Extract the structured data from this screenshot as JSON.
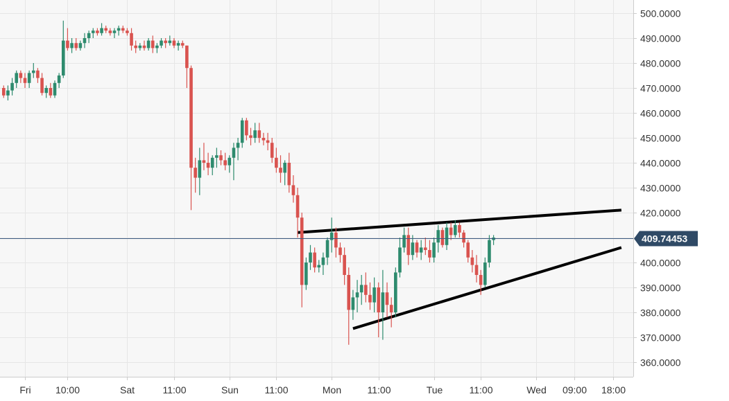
{
  "chart_data": {
    "type": "candlestick",
    "title": "",
    "xlabel": "",
    "ylabel": "",
    "ylim": [
      355,
      505
    ],
    "y_ticks": [
      "500.0000",
      "490.0000",
      "480.0000",
      "470.0000",
      "460.0000",
      "450.0000",
      "440.0000",
      "430.0000",
      "420.0000",
      "410.0000",
      "400.0000",
      "390.0000",
      "380.0000",
      "370.0000",
      "360.0000"
    ],
    "y_tick_values": [
      500,
      490,
      480,
      470,
      460,
      450,
      440,
      430,
      420,
      410,
      400,
      390,
      380,
      370,
      360
    ],
    "x_ticks": [
      "Fri",
      "10:00",
      "Sat",
      "11:00",
      "Sun",
      "11:00",
      "Mon",
      "11:00",
      "Tue",
      "11:00",
      "Wed",
      "09:00",
      "18:00"
    ],
    "x_tick_hours": [
      0,
      10,
      24,
      35,
      48,
      59,
      72,
      83,
      96,
      107,
      120,
      129,
      138
    ],
    "grid": true,
    "current_price": {
      "label": "409.74453",
      "value": 409.74453
    },
    "colors": {
      "up": "#2e8b6e",
      "down": "#d9534f",
      "price_line": "#3d5a80",
      "badge": "#2f4a66",
      "grid": "#e6e6e6",
      "trendline": "#000000"
    },
    "candles_hourly": [
      [
        -5,
        470,
        471,
        466,
        467
      ],
      [
        -4,
        467,
        471,
        465,
        469
      ],
      [
        -3,
        469,
        474,
        467,
        472
      ],
      [
        -2,
        472,
        477,
        470,
        476
      ],
      [
        -1,
        476,
        477,
        472,
        474
      ],
      [
        0,
        474,
        476,
        470,
        472
      ],
      [
        1,
        472,
        477,
        470,
        476
      ],
      [
        2,
        476,
        480,
        474,
        477
      ],
      [
        3,
        477,
        478,
        472,
        474
      ],
      [
        4,
        474,
        476,
        467,
        468
      ],
      [
        5,
        468,
        471,
        466,
        470
      ],
      [
        6,
        470,
        472,
        466,
        467
      ],
      [
        7,
        467,
        473,
        466,
        472
      ],
      [
        8,
        472,
        476,
        470,
        475
      ],
      [
        9,
        475,
        497,
        474,
        489
      ],
      [
        10,
        489,
        494,
        485,
        486
      ],
      [
        11,
        486,
        490,
        484,
        488
      ],
      [
        12,
        488,
        490,
        485,
        486
      ],
      [
        13,
        486,
        489,
        485,
        488
      ],
      [
        14,
        488,
        492,
        486,
        490
      ],
      [
        15,
        490,
        493,
        488,
        492
      ],
      [
        16,
        492,
        494,
        490,
        493
      ],
      [
        17,
        493,
        494,
        491,
        492
      ],
      [
        18,
        492,
        496,
        491,
        494
      ],
      [
        19,
        494,
        495,
        492,
        493
      ],
      [
        20,
        493,
        494,
        491,
        492
      ],
      [
        21,
        492,
        494,
        490,
        493
      ],
      [
        22,
        493,
        495,
        491,
        494
      ],
      [
        23,
        494,
        495,
        492,
        493
      ],
      [
        24,
        493,
        494,
        491,
        492
      ],
      [
        25,
        492,
        494,
        485,
        487
      ],
      [
        26,
        487,
        489,
        484,
        486
      ],
      [
        27,
        486,
        488,
        485,
        487
      ],
      [
        28,
        487,
        489,
        485,
        486
      ],
      [
        29,
        486,
        490,
        485,
        489
      ],
      [
        30,
        489,
        491,
        484,
        486
      ],
      [
        31,
        486,
        488,
        484,
        487
      ],
      [
        32,
        487,
        490,
        486,
        489
      ],
      [
        33,
        489,
        490,
        486,
        488
      ],
      [
        34,
        488,
        491,
        487,
        489
      ],
      [
        35,
        489,
        490,
        486,
        487
      ],
      [
        36,
        487,
        489,
        485,
        488
      ],
      [
        37,
        488,
        489,
        486,
        487
      ],
      [
        38,
        487,
        487,
        470,
        478
      ],
      [
        39,
        478,
        479,
        421,
        438
      ],
      [
        40,
        438,
        442,
        428,
        434
      ],
      [
        41,
        434,
        446,
        427,
        441
      ],
      [
        42,
        441,
        448,
        437,
        440
      ],
      [
        43,
        440,
        444,
        435,
        438
      ],
      [
        44,
        438,
        443,
        435,
        442
      ],
      [
        45,
        442,
        446,
        438,
        443
      ],
      [
        46,
        443,
        445,
        439,
        441
      ],
      [
        47,
        441,
        444,
        437,
        439
      ],
      [
        48,
        439,
        443,
        436,
        442
      ],
      [
        49,
        442,
        448,
        433,
        446
      ],
      [
        50,
        446,
        450,
        441,
        448
      ],
      [
        51,
        448,
        458,
        446,
        457
      ],
      [
        52,
        457,
        458,
        449,
        451
      ],
      [
        53,
        451,
        454,
        447,
        450
      ],
      [
        54,
        450,
        456,
        448,
        453
      ],
      [
        55,
        453,
        456,
        448,
        450
      ],
      [
        56,
        450,
        452,
        447,
        449
      ],
      [
        57,
        449,
        452,
        445,
        448
      ],
      [
        58,
        448,
        450,
        440,
        442
      ],
      [
        59,
        442,
        446,
        436,
        438
      ],
      [
        60,
        438,
        443,
        432,
        436
      ],
      [
        61,
        436,
        441,
        431,
        440
      ],
      [
        62,
        440,
        444,
        428,
        431
      ],
      [
        63,
        431,
        435,
        424,
        427
      ],
      [
        64,
        427,
        430,
        410,
        418
      ],
      [
        65,
        418,
        420,
        382,
        391
      ],
      [
        66,
        391,
        402,
        389,
        400
      ],
      [
        67,
        400,
        407,
        397,
        404
      ],
      [
        68,
        404,
        406,
        396,
        398
      ],
      [
        69,
        398,
        401,
        396,
        399
      ],
      [
        70,
        399,
        404,
        395,
        402
      ],
      [
        71,
        402,
        410,
        399,
        409
      ],
      [
        72,
        409,
        418,
        404,
        412
      ],
      [
        73,
        412,
        414,
        402,
        406
      ],
      [
        74,
        406,
        408,
        400,
        403
      ],
      [
        75,
        403,
        406,
        391,
        395
      ],
      [
        76,
        395,
        398,
        367,
        381
      ],
      [
        77,
        381,
        389,
        377,
        386
      ],
      [
        78,
        386,
        393,
        380,
        388
      ],
      [
        79,
        388,
        395,
        383,
        391
      ],
      [
        80,
        391,
        396,
        384,
        387
      ],
      [
        81,
        387,
        392,
        381,
        384
      ],
      [
        82,
        384,
        394,
        380,
        390
      ],
      [
        83,
        390,
        392,
        370,
        380
      ],
      [
        84,
        380,
        397,
        369,
        388
      ],
      [
        85,
        388,
        392,
        378,
        383
      ],
      [
        86,
        383,
        386,
        374,
        380
      ],
      [
        87,
        380,
        398,
        378,
        396
      ],
      [
        88,
        396,
        410,
        394,
        406
      ],
      [
        89,
        406,
        414,
        404,
        411
      ],
      [
        90,
        411,
        414,
        399,
        403
      ],
      [
        91,
        403,
        411,
        401,
        408
      ],
      [
        92,
        408,
        409,
        402,
        404
      ],
      [
        93,
        404,
        409,
        401,
        406
      ],
      [
        94,
        406,
        410,
        403,
        405
      ],
      [
        95,
        405,
        409,
        400,
        402
      ],
      [
        96,
        402,
        410,
        400,
        408
      ],
      [
        97,
        408,
        415,
        404,
        413
      ],
      [
        98,
        413,
        414,
        406,
        407
      ],
      [
        99,
        407,
        416,
        405,
        414
      ],
      [
        100,
        414,
        416,
        409,
        411
      ],
      [
        101,
        411,
        417,
        410,
        415
      ],
      [
        102,
        415,
        416,
        410,
        412
      ],
      [
        103,
        412,
        413,
        406,
        408
      ],
      [
        104,
        408,
        409,
        400,
        402
      ],
      [
        105,
        402,
        405,
        396,
        399
      ],
      [
        106,
        399,
        403,
        392,
        395
      ],
      [
        107,
        395,
        397,
        387,
        391
      ],
      [
        108,
        391,
        402,
        390,
        400
      ],
      [
        109,
        400,
        411,
        398,
        409
      ],
      [
        110,
        409,
        411,
        407,
        410
      ]
    ],
    "trendlines": [
      {
        "from_hour": 64,
        "from_value": 412.0,
        "to_hour": 140,
        "to_value": 421.0
      },
      {
        "from_hour": 77,
        "from_value": 373.5,
        "to_hour": 140,
        "to_value": 406.0
      }
    ]
  }
}
